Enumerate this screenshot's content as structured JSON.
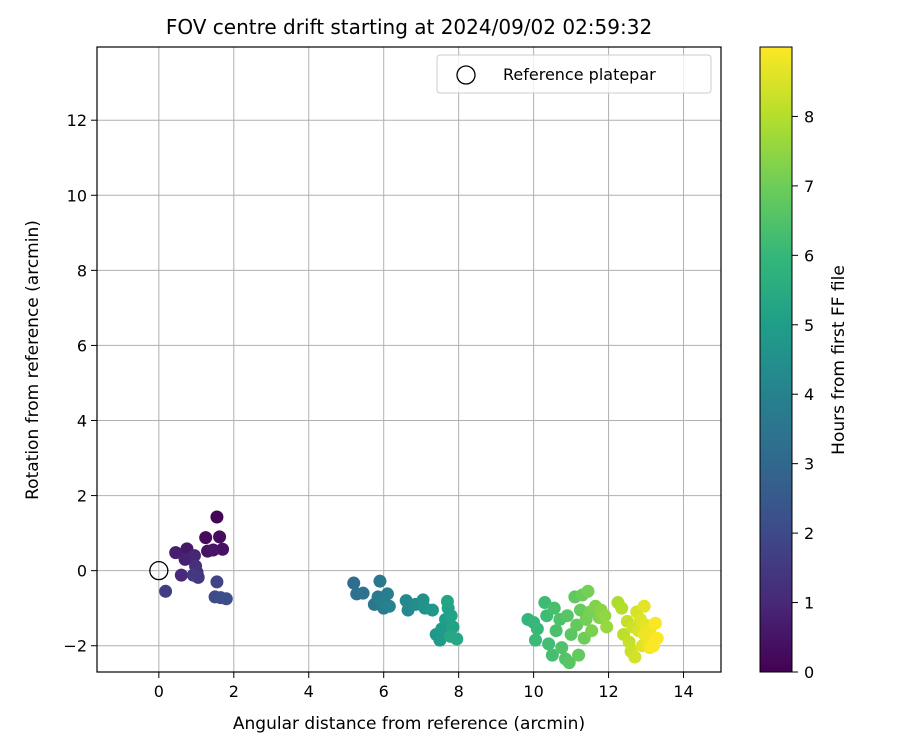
{
  "chart_data": {
    "type": "scatter",
    "title": "FOV centre drift starting at 2024/09/02 02:59:32",
    "xlabel": "Angular distance from reference (arcmin)",
    "ylabel": "Rotation from reference (arcmin)",
    "xlim": [
      -1.65,
      15.0
    ],
    "ylim": [
      -2.7,
      13.95
    ],
    "x_ticks": [
      0,
      2,
      4,
      6,
      8,
      10,
      12,
      14
    ],
    "y_ticks": [
      -2,
      0,
      2,
      4,
      6,
      8,
      10,
      12
    ],
    "grid": true,
    "legend": {
      "placement": "top-right",
      "entries": [
        "Reference platepar"
      ]
    },
    "reference": {
      "x": 0,
      "y": 0,
      "marker": "open-circle"
    },
    "colorbar": {
      "label": "Hours from first FF file",
      "colormap": "viridis",
      "range": [
        0,
        9.0
      ],
      "ticks": [
        0,
        1,
        2,
        3,
        4,
        5,
        6,
        7,
        8
      ]
    },
    "points": [
      {
        "x": 1.55,
        "y": 1.43,
        "h": 0.1
      },
      {
        "x": 1.25,
        "y": 0.88,
        "h": 0.25
      },
      {
        "x": 1.62,
        "y": 0.9,
        "h": 0.3
      },
      {
        "x": 1.7,
        "y": 0.57,
        "h": 0.4
      },
      {
        "x": 1.3,
        "y": 0.52,
        "h": 0.45
      },
      {
        "x": 1.45,
        "y": 0.55,
        "h": 0.5
      },
      {
        "x": 0.75,
        "y": 0.58,
        "h": 0.6
      },
      {
        "x": 0.45,
        "y": 0.48,
        "h": 0.75
      },
      {
        "x": 0.7,
        "y": 0.3,
        "h": 0.85
      },
      {
        "x": 0.95,
        "y": 0.4,
        "h": 0.95
      },
      {
        "x": 0.6,
        "y": -0.12,
        "h": 1.1
      },
      {
        "x": 0.98,
        "y": 0.12,
        "h": 1.2
      },
      {
        "x": 1.02,
        "y": -0.05,
        "h": 1.3
      },
      {
        "x": 1.05,
        "y": -0.18,
        "h": 1.4
      },
      {
        "x": 0.92,
        "y": -0.12,
        "h": 1.5
      },
      {
        "x": 0.18,
        "y": -0.55,
        "h": 1.6
      },
      {
        "x": 1.55,
        "y": -0.3,
        "h": 1.8
      },
      {
        "x": 1.5,
        "y": -0.7,
        "h": 2.0
      },
      {
        "x": 1.65,
        "y": -0.72,
        "h": 2.1
      },
      {
        "x": 1.8,
        "y": -0.75,
        "h": 2.2
      },
      {
        "x": 5.2,
        "y": -0.33,
        "h": 3.2
      },
      {
        "x": 5.28,
        "y": -0.62,
        "h": 3.3
      },
      {
        "x": 5.45,
        "y": -0.6,
        "h": 3.4
      },
      {
        "x": 5.75,
        "y": -0.9,
        "h": 3.5
      },
      {
        "x": 5.9,
        "y": -0.28,
        "h": 3.6
      },
      {
        "x": 5.85,
        "y": -0.7,
        "h": 3.7
      },
      {
        "x": 6.0,
        "y": -1.0,
        "h": 3.75
      },
      {
        "x": 6.1,
        "y": -0.62,
        "h": 3.85
      },
      {
        "x": 5.95,
        "y": -0.85,
        "h": 3.9
      },
      {
        "x": 6.15,
        "y": -0.95,
        "h": 3.95
      },
      {
        "x": 6.6,
        "y": -0.8,
        "h": 4.2
      },
      {
        "x": 6.65,
        "y": -1.05,
        "h": 4.3
      },
      {
        "x": 6.85,
        "y": -0.9,
        "h": 4.4
      },
      {
        "x": 7.05,
        "y": -0.78,
        "h": 4.5
      },
      {
        "x": 7.1,
        "y": -1.0,
        "h": 4.6
      },
      {
        "x": 7.3,
        "y": -1.05,
        "h": 4.7
      },
      {
        "x": 7.4,
        "y": -1.7,
        "h": 4.8
      },
      {
        "x": 7.5,
        "y": -1.85,
        "h": 4.85
      },
      {
        "x": 7.55,
        "y": -1.55,
        "h": 4.9
      },
      {
        "x": 7.65,
        "y": -1.3,
        "h": 5.0
      },
      {
        "x": 7.72,
        "y": -1.0,
        "h": 5.1
      },
      {
        "x": 7.8,
        "y": -1.2,
        "h": 5.15
      },
      {
        "x": 7.85,
        "y": -1.5,
        "h": 5.2
      },
      {
        "x": 7.7,
        "y": -0.82,
        "h": 5.25
      },
      {
        "x": 7.78,
        "y": -1.75,
        "h": 5.3
      },
      {
        "x": 7.95,
        "y": -1.82,
        "h": 5.35
      },
      {
        "x": 9.85,
        "y": -1.3,
        "h": 5.9
      },
      {
        "x": 10.0,
        "y": -1.38,
        "h": 6.0
      },
      {
        "x": 10.1,
        "y": -1.55,
        "h": 6.05
      },
      {
        "x": 10.05,
        "y": -1.85,
        "h": 6.1
      },
      {
        "x": 10.3,
        "y": -0.85,
        "h": 6.15
      },
      {
        "x": 10.35,
        "y": -1.2,
        "h": 6.2
      },
      {
        "x": 10.4,
        "y": -1.95,
        "h": 6.25
      },
      {
        "x": 10.5,
        "y": -2.25,
        "h": 6.3
      },
      {
        "x": 10.55,
        "y": -1.0,
        "h": 6.35
      },
      {
        "x": 10.6,
        "y": -1.6,
        "h": 6.4
      },
      {
        "x": 10.7,
        "y": -1.3,
        "h": 6.45
      },
      {
        "x": 10.75,
        "y": -2.05,
        "h": 6.5
      },
      {
        "x": 10.85,
        "y": -2.35,
        "h": 6.55
      },
      {
        "x": 10.9,
        "y": -1.2,
        "h": 6.6
      },
      {
        "x": 10.95,
        "y": -2.45,
        "h": 6.65
      },
      {
        "x": 11.0,
        "y": -1.7,
        "h": 6.7
      },
      {
        "x": 11.1,
        "y": -0.7,
        "h": 6.75
      },
      {
        "x": 11.15,
        "y": -1.45,
        "h": 6.8
      },
      {
        "x": 11.2,
        "y": -2.25,
        "h": 6.85
      },
      {
        "x": 11.25,
        "y": -1.05,
        "h": 6.9
      },
      {
        "x": 11.3,
        "y": -0.65,
        "h": 6.95
      },
      {
        "x": 11.35,
        "y": -1.8,
        "h": 7.0
      },
      {
        "x": 11.4,
        "y": -1.3,
        "h": 7.05
      },
      {
        "x": 11.45,
        "y": -0.55,
        "h": 7.1
      },
      {
        "x": 11.5,
        "y": -1.1,
        "h": 7.15
      },
      {
        "x": 11.55,
        "y": -1.6,
        "h": 7.2
      },
      {
        "x": 11.65,
        "y": -0.95,
        "h": 7.25
      },
      {
        "x": 11.75,
        "y": -1.25,
        "h": 7.3
      },
      {
        "x": 11.8,
        "y": -1.05,
        "h": 7.4
      },
      {
        "x": 11.9,
        "y": -1.2,
        "h": 7.5
      },
      {
        "x": 11.95,
        "y": -1.5,
        "h": 7.6
      },
      {
        "x": 12.25,
        "y": -0.85,
        "h": 7.9
      },
      {
        "x": 12.35,
        "y": -1.0,
        "h": 8.0
      },
      {
        "x": 12.4,
        "y": -1.7,
        "h": 8.1
      },
      {
        "x": 12.5,
        "y": -1.35,
        "h": 8.2
      },
      {
        "x": 12.55,
        "y": -1.9,
        "h": 8.25
      },
      {
        "x": 12.6,
        "y": -2.15,
        "h": 8.3
      },
      {
        "x": 12.65,
        "y": -1.5,
        "h": 8.35
      },
      {
        "x": 12.7,
        "y": -2.3,
        "h": 8.4
      },
      {
        "x": 12.75,
        "y": -1.1,
        "h": 8.45
      },
      {
        "x": 12.8,
        "y": -1.6,
        "h": 8.5
      },
      {
        "x": 12.85,
        "y": -1.3,
        "h": 8.55
      },
      {
        "x": 12.9,
        "y": -2.0,
        "h": 8.6
      },
      {
        "x": 12.95,
        "y": -0.95,
        "h": 8.65
      },
      {
        "x": 13.0,
        "y": -1.45,
        "h": 8.7
      },
      {
        "x": 13.05,
        "y": -1.75,
        "h": 8.75
      },
      {
        "x": 13.1,
        "y": -1.6,
        "h": 8.8
      },
      {
        "x": 13.15,
        "y": -1.95,
        "h": 8.85
      },
      {
        "x": 13.2,
        "y": -1.85,
        "h": 8.9
      },
      {
        "x": 13.25,
        "y": -1.4,
        "h": 8.95
      },
      {
        "x": 13.3,
        "y": -1.8,
        "h": 9.0
      },
      {
        "x": 13.1,
        "y": -2.05,
        "h": 8.92
      },
      {
        "x": 12.95,
        "y": -1.7,
        "h": 8.8
      },
      {
        "x": 13.2,
        "y": -2.0,
        "h": 8.96
      }
    ]
  }
}
